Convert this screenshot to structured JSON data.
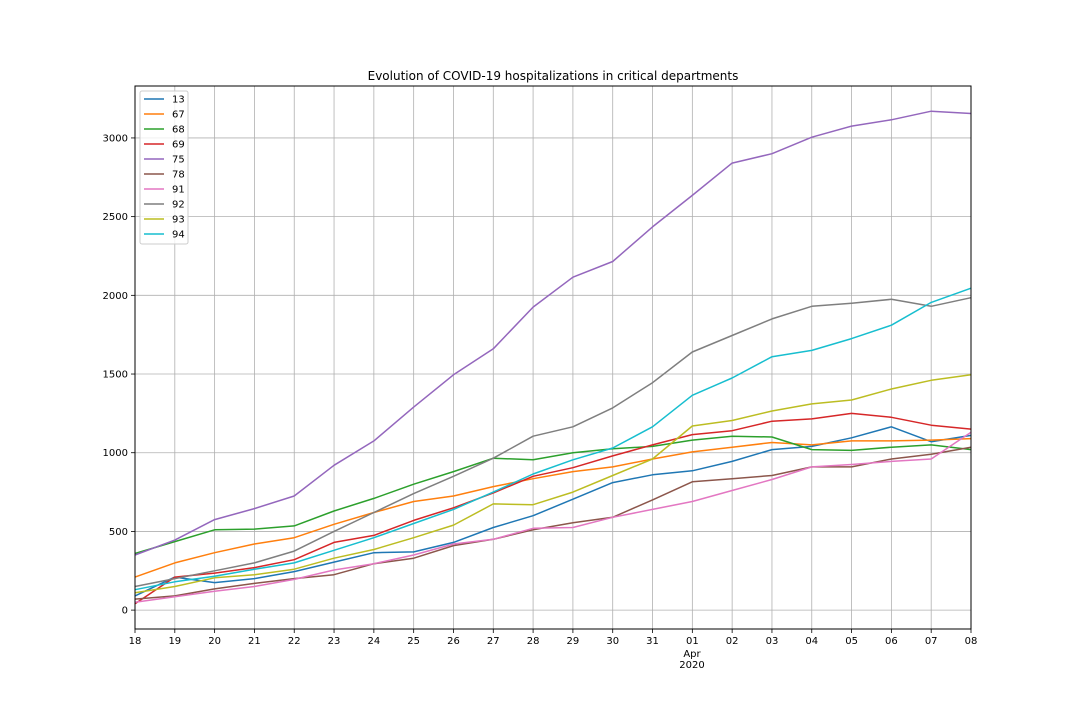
{
  "chart_data": {
    "type": "line",
    "title": "Evolution of COVID-19 hospitalizations in critical departments",
    "xlabel": "",
    "ylabel": "",
    "x": [
      "2020-03-18",
      "2020-03-19",
      "2020-03-20",
      "2020-03-21",
      "2020-03-22",
      "2020-03-23",
      "2020-03-24",
      "2020-03-25",
      "2020-03-26",
      "2020-03-27",
      "2020-03-28",
      "2020-03-29",
      "2020-03-30",
      "2020-03-31",
      "2020-04-01",
      "2020-04-02",
      "2020-04-03",
      "2020-04-04",
      "2020-04-05",
      "2020-04-06",
      "2020-04-07",
      "2020-04-08"
    ],
    "x_tick_labels": [
      "18",
      "19",
      "20",
      "21",
      "22",
      "23",
      "24",
      "25",
      "26",
      "27",
      "28",
      "29",
      "30",
      "31",
      "01",
      "02",
      "03",
      "04",
      "05",
      "06",
      "07",
      "08"
    ],
    "x_secondary_label": [
      "Apr",
      "2020"
    ],
    "y_ticks": [
      "0",
      "500",
      "1000",
      "1500",
      "2000",
      "2500",
      "3000"
    ],
    "ylim": [
      -120,
      3330
    ],
    "grid": true,
    "legend_position": "top-left",
    "series": [
      {
        "name": "13",
        "color": "#1f77b4",
        "values": [
          90,
          210,
          175,
          200,
          245,
          305,
          365,
          370,
          430,
          525,
          600,
          705,
          810,
          860,
          885,
          945,
          1020,
          1040,
          1095,
          1165,
          1070,
          1110
        ]
      },
      {
        "name": "67",
        "color": "#ff7f0e",
        "values": [
          210,
          300,
          365,
          420,
          460,
          545,
          620,
          690,
          725,
          785,
          835,
          880,
          910,
          960,
          1005,
          1035,
          1065,
          1050,
          1075,
          1075,
          1080,
          1090
        ]
      },
      {
        "name": "68",
        "color": "#2ca02c",
        "values": [
          360,
          435,
          510,
          515,
          535,
          630,
          710,
          800,
          880,
          965,
          955,
          1000,
          1025,
          1040,
          1080,
          1105,
          1100,
          1020,
          1015,
          1035,
          1050,
          1020
        ]
      },
      {
        "name": "69",
        "color": "#d62728",
        "values": [
          40,
          210,
          235,
          270,
          320,
          430,
          475,
          570,
          650,
          745,
          850,
          905,
          980,
          1050,
          1115,
          1140,
          1200,
          1215,
          1250,
          1225,
          1175,
          1150
        ]
      },
      {
        "name": "75",
        "color": "#9467bd",
        "values": [
          350,
          445,
          575,
          645,
          725,
          920,
          1075,
          1290,
          1495,
          1660,
          1925,
          2115,
          2215,
          2435,
          2635,
          2840,
          2900,
          3005,
          3075,
          3115,
          3170,
          3155
        ]
      },
      {
        "name": "78",
        "color": "#8c564b",
        "values": [
          70,
          90,
          135,
          170,
          200,
          225,
          295,
          330,
          410,
          450,
          510,
          555,
          590,
          700,
          815,
          835,
          855,
          910,
          910,
          960,
          990,
          1035
        ]
      },
      {
        "name": "91",
        "color": "#e377c2",
        "values": [
          50,
          85,
          120,
          150,
          195,
          255,
          295,
          350,
          420,
          450,
          520,
          525,
          590,
          640,
          690,
          760,
          830,
          910,
          925,
          945,
          960,
          1130
        ]
      },
      {
        "name": "92",
        "color": "#7f7f7f",
        "values": [
          150,
          200,
          250,
          300,
          375,
          500,
          620,
          740,
          850,
          965,
          1105,
          1165,
          1285,
          1445,
          1640,
          1745,
          1850,
          1930,
          1950,
          1975,
          1930,
          1985
        ]
      },
      {
        "name": "93",
        "color": "#bcbd22",
        "values": [
          110,
          150,
          205,
          225,
          260,
          330,
          385,
          460,
          540,
          675,
          670,
          750,
          855,
          960,
          1170,
          1205,
          1265,
          1310,
          1335,
          1405,
          1460,
          1495
        ]
      },
      {
        "name": "94",
        "color": "#17becf",
        "values": [
          130,
          180,
          215,
          260,
          300,
          380,
          460,
          550,
          640,
          750,
          865,
          955,
          1030,
          1165,
          1365,
          1475,
          1610,
          1650,
          1725,
          1810,
          1955,
          2045
        ]
      }
    ]
  }
}
